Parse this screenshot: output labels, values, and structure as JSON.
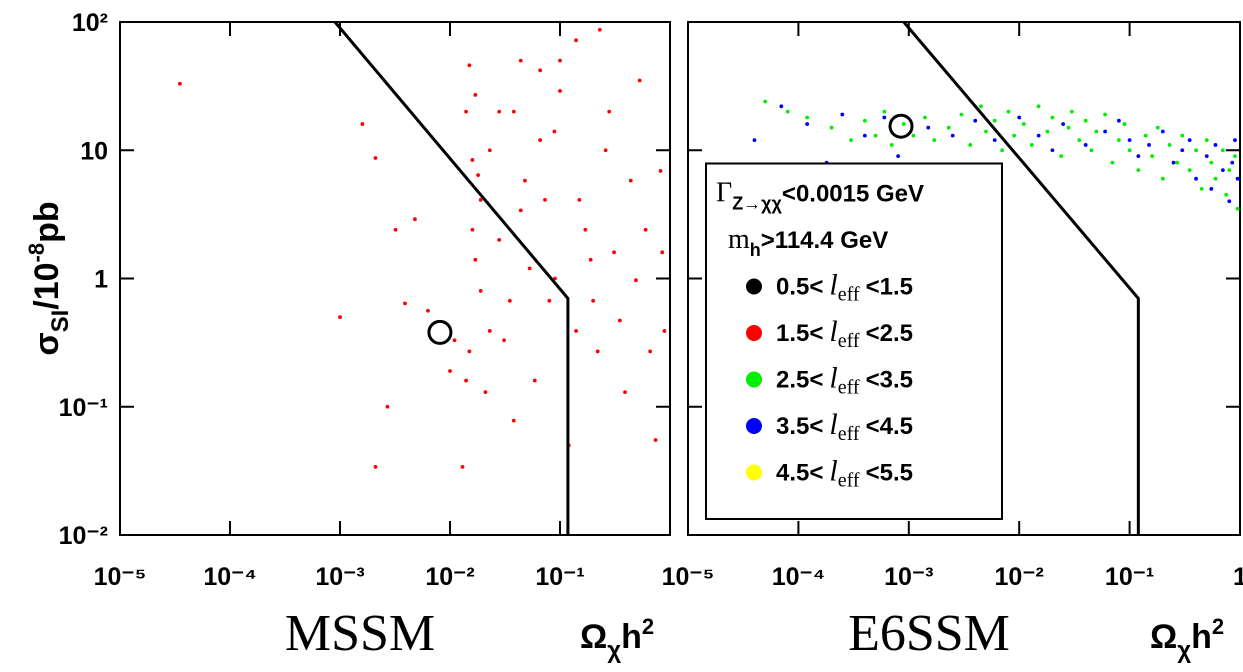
{
  "chart_data": [
    {
      "type": "scatter",
      "title": "MSSM",
      "xlabel": [
        "Ω",
        "χ",
        "h",
        "2"
      ],
      "ylabel": [
        "σ",
        "SI",
        "/10",
        "-8",
        "pb"
      ],
      "xscale": "log",
      "yscale": "log",
      "xlim": [
        1e-05,
        1
      ],
      "ylim": [
        0.01,
        100
      ],
      "xticks": [
        {
          "value": 1e-05,
          "label": "10⁻⁵"
        },
        {
          "value": 0.0001,
          "label": "10⁻⁴"
        },
        {
          "value": 0.001,
          "label": "10⁻³"
        },
        {
          "value": 0.01,
          "label": "10⁻²"
        },
        {
          "value": 0.1,
          "label": "10⁻¹"
        }
      ],
      "yticks": [
        {
          "value": 0.01,
          "label": "10⁻²"
        },
        {
          "value": 0.1,
          "label": "10⁻¹"
        },
        1,
        10,
        {
          "value": 100,
          "label": "10²"
        }
      ],
      "ytick_labels": true,
      "series": [
        {
          "color": "#ff0000",
          "x": [
            3.5e-05,
            0.0016,
            0.0021,
            0.001,
            0.0032,
            0.0048,
            0.0039,
            0.0063,
            0.0021,
            0.0027,
            0.015,
            0.014,
            0.016,
            0.018,
            0.019,
            0.016,
            0.017,
            0.019,
            0.015,
            0.014,
            0.013,
            0.021,
            0.023,
            0.028,
            0.035,
            0.031,
            0.038,
            0.044,
            0.048,
            0.053,
            0.038,
            0.059,
            0.066,
            0.073,
            0.08,
            0.089,
            0.1,
            0.12,
            0.14,
            0.15,
            0.17,
            0.19,
            0.2,
            0.22,
            0.26,
            0.28,
            0.31,
            0.35,
            0.39,
            0.44,
            0.49,
            0.53,
            0.6,
            0.66,
            0.74,
            0.82,
            0.85,
            0.89,
            0.23,
            0.09,
            0.023,
            0.011,
            0.01,
            0.028,
            0.017,
            0.044,
            0.066,
            0.1,
            0.14
          ],
          "values": [
            33,
            16,
            8.7,
            0.5,
            2.4,
            2.9,
            0.64,
            0.56,
            0.034,
            0.1,
            46,
            20,
            8.4,
            6.4,
            4.1,
            2.4,
            1.4,
            0.8,
            0.27,
            0.16,
            0.034,
            0.13,
            10,
            2,
            0.67,
            0.33,
            20,
            50,
            5.8,
            1.2,
            0.078,
            0.16,
            42,
            4.1,
            0.67,
            14,
            50,
            0.05,
            72,
            4.1,
            2.4,
            1.4,
            0.67,
            0.27,
            10,
            20,
            1.6,
            0.47,
            0.13,
            5.8,
            0.97,
            35,
            2.4,
            0.27,
            0.055,
            6.9,
            1.6,
            0.39,
            87,
            1,
            0.39,
            0.33,
            0.19,
            20,
            27,
            3.4,
            12,
            29,
            0.39
          ]
        }
      ],
      "curve": {
        "color": "#000000",
        "x": [
          0.0009,
          0.118,
          0.118
        ],
        "values": [
          100,
          0.7,
          0.01
        ]
      },
      "marker": {
        "color": "#000000",
        "x": 0.0081,
        "y": 0.38
      }
    },
    {
      "type": "scatter",
      "title": "E6SSM",
      "xlabel": [
        "Ω",
        "χ",
        "h",
        "2"
      ],
      "xscale": "log",
      "yscale": "log",
      "xlim": [
        1e-05,
        1
      ],
      "ylim": [
        0.01,
        100
      ],
      "xticks": [
        {
          "value": 1e-05,
          "label": "10⁻⁵"
        },
        {
          "value": 0.0001,
          "label": "10⁻⁴"
        },
        {
          "value": 0.001,
          "label": "10⁻³"
        },
        {
          "value": 0.01,
          "label": "10⁻²"
        },
        {
          "value": 0.1,
          "label": "10⁻¹"
        },
        1
      ],
      "yticks": [
        0.01,
        0.1,
        1,
        10,
        100
      ],
      "ytick_labels": false,
      "legend_loc": "lower left",
      "annotations": [
        [
          "Γ",
          "Z→χχ",
          "<0.0015 GeV"
        ],
        [
          "m",
          "h",
          ">114.4 GeV"
        ]
      ],
      "series": [
        {
          "name": "0.5<leff<1.5",
          "color": "#000000",
          "x": [],
          "values": []
        },
        {
          "name": "1.5<leff<2.5",
          "color": "#ff0000",
          "x": [],
          "values": []
        },
        {
          "name": "2.5<leff<3.5",
          "color": "#00ee00",
          "x": [
            5e-05,
            8e-05,
            0.00012,
            0.0002,
            0.0003,
            0.0004,
            0.0005,
            0.0006,
            0.0007,
            0.0009,
            0.0011,
            0.0014,
            0.0017,
            0.002,
            0.0023,
            0.003,
            0.0036,
            0.0045,
            0.005,
            0.006,
            0.007,
            0.008,
            0.009,
            0.011,
            0.013,
            0.015,
            0.018,
            0.02,
            0.024,
            0.028,
            0.03,
            0.035,
            0.04,
            0.045,
            0.05,
            0.06,
            0.07,
            0.08,
            0.09,
            0.1,
            0.12,
            0.14,
            0.16,
            0.18,
            0.2,
            0.23,
            0.27,
            0.3,
            0.35,
            0.4,
            0.45,
            0.5,
            0.55,
            0.6,
            0.7,
            0.75,
            0.8,
            0.9,
            0.95
          ],
          "values": [
            24,
            20,
            18,
            15,
            12,
            17,
            13,
            20,
            11,
            16,
            13,
            18,
            12,
            6,
            15,
            19,
            11,
            22,
            14,
            17,
            10,
            20,
            13,
            16,
            11,
            22,
            14,
            18,
            9,
            15,
            20,
            12,
            17,
            10,
            14,
            19,
            8,
            12,
            16,
            10,
            7,
            13,
            9,
            15,
            6,
            11,
            8,
            13,
            7,
            10,
            5,
            12,
            8,
            6,
            10,
            4.5,
            7,
            9,
            3.5
          ]
        },
        {
          "name": "3.5<leff<4.5",
          "color": "#0000ff",
          "x": [
            4e-05,
            7e-05,
            0.00012,
            0.00018,
            0.00025,
            0.0004,
            0.0006,
            0.0008,
            0.0015,
            0.0025,
            0.004,
            0.006,
            0.01,
            0.015,
            0.02,
            0.025,
            0.04,
            0.06,
            0.08,
            0.1,
            0.12,
            0.15,
            0.2,
            0.25,
            0.3,
            0.35,
            0.4,
            0.5,
            0.55,
            0.6,
            0.7,
            0.8,
            0.85,
            0.9,
            0.95
          ],
          "values": [
            12,
            22,
            16,
            8,
            19,
            13,
            18,
            9,
            15,
            13,
            17,
            12,
            18,
            13,
            10,
            16,
            11,
            14,
            17,
            12,
            9,
            11,
            14,
            8,
            10,
            12,
            6,
            9,
            5,
            11,
            7,
            4,
            8,
            12,
            6
          ]
        },
        {
          "name": "4.5<leff<5.5",
          "color": "#ffff00",
          "x": [],
          "values": []
        }
      ],
      "curve": {
        "color": "#000000",
        "x": [
          0.0009,
          0.12,
          0.12
        ],
        "values": [
          100,
          0.7,
          0.01
        ]
      },
      "marker": {
        "color": "#000000",
        "x": 0.00085,
        "y": 15.4
      }
    }
  ]
}
